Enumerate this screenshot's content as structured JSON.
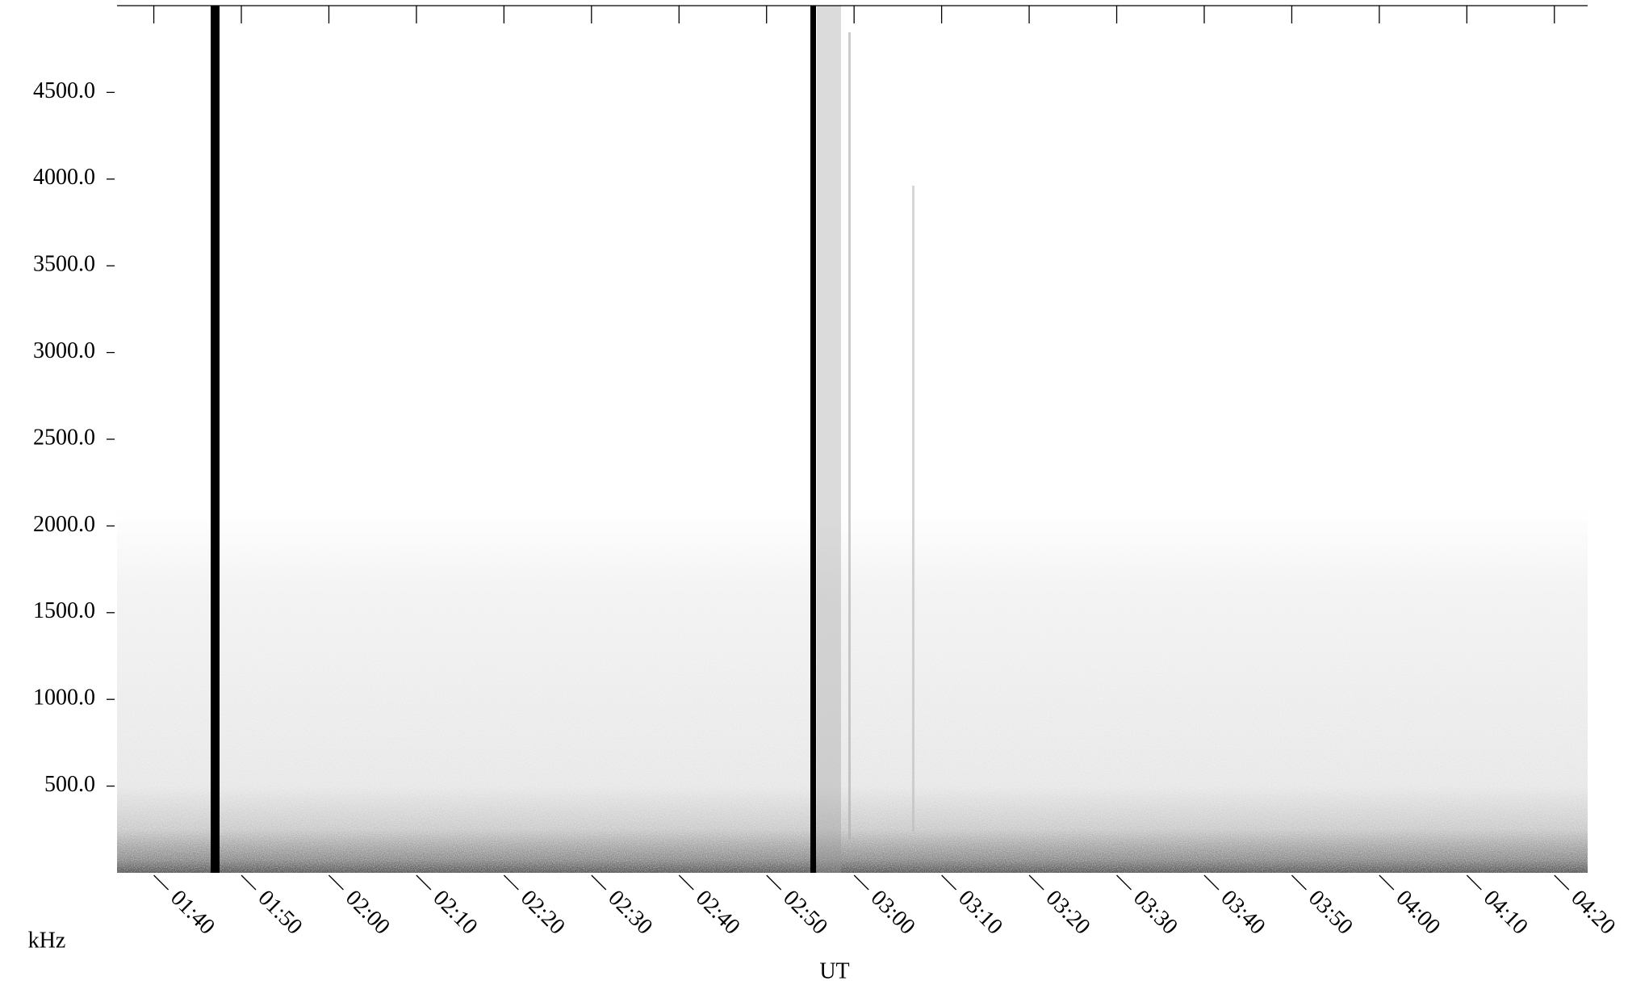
{
  "chart_data": {
    "type": "spectrogram",
    "ylabel": "kHz",
    "xlabel": "UT",
    "ylim": [
      0,
      5000
    ],
    "yticks": [
      {
        "value": 500,
        "label": "500.0"
      },
      {
        "value": 1000,
        "label": "1000.0"
      },
      {
        "value": 1500,
        "label": "1500.0"
      },
      {
        "value": 2000,
        "label": "2000.0"
      },
      {
        "value": 2500,
        "label": "2500.0"
      },
      {
        "value": 3000,
        "label": "3000.0"
      },
      {
        "value": 3500,
        "label": "3500.0"
      },
      {
        "value": 4000,
        "label": "4000.0"
      },
      {
        "value": 4500,
        "label": "4500.0"
      }
    ],
    "xlim": [
      95.8,
      263.8
    ],
    "xticks": [
      {
        "value": 100,
        "label": "01:40"
      },
      {
        "value": 110,
        "label": "01:50"
      },
      {
        "value": 120,
        "label": "02:00"
      },
      {
        "value": 130,
        "label": "02:10"
      },
      {
        "value": 140,
        "label": "02:20"
      },
      {
        "value": 150,
        "label": "02:30"
      },
      {
        "value": 160,
        "label": "02:40"
      },
      {
        "value": 170,
        "label": "02:50"
      },
      {
        "value": 180,
        "label": "03:00"
      },
      {
        "value": 190,
        "label": "03:10"
      },
      {
        "value": 200,
        "label": "03:20"
      },
      {
        "value": 210,
        "label": "03:30"
      },
      {
        "value": 220,
        "label": "03:40"
      },
      {
        "value": 230,
        "label": "03:50"
      },
      {
        "value": 240,
        "label": "04:00"
      },
      {
        "value": 250,
        "label": "04:10"
      },
      {
        "value": 260,
        "label": "04:20"
      }
    ]
  }
}
